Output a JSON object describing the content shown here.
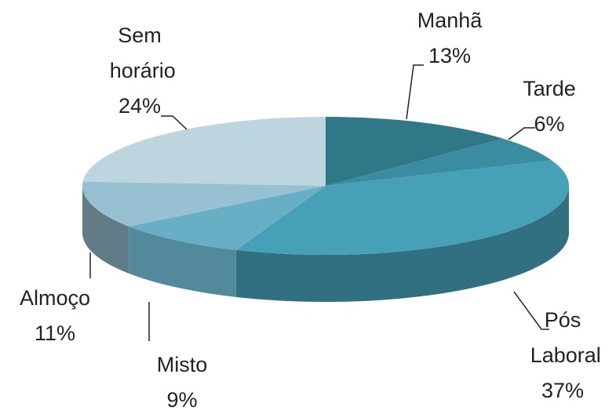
{
  "chart_data": {
    "type": "pie3d",
    "categories": [
      "Manhã",
      "Tarde",
      "Pós Laboral",
      "Misto",
      "Almoço",
      "Sem horário"
    ],
    "values": [
      13,
      6,
      37,
      9,
      11,
      24
    ],
    "value_labels": [
      "13%",
      "6%",
      "37%",
      "9%",
      "11%",
      "24%"
    ],
    "colors": [
      "#2f7888",
      "#3a8ca0",
      "#45a0b8",
      "#68afc6",
      "#97c1d2",
      "#bdd5df"
    ]
  }
}
